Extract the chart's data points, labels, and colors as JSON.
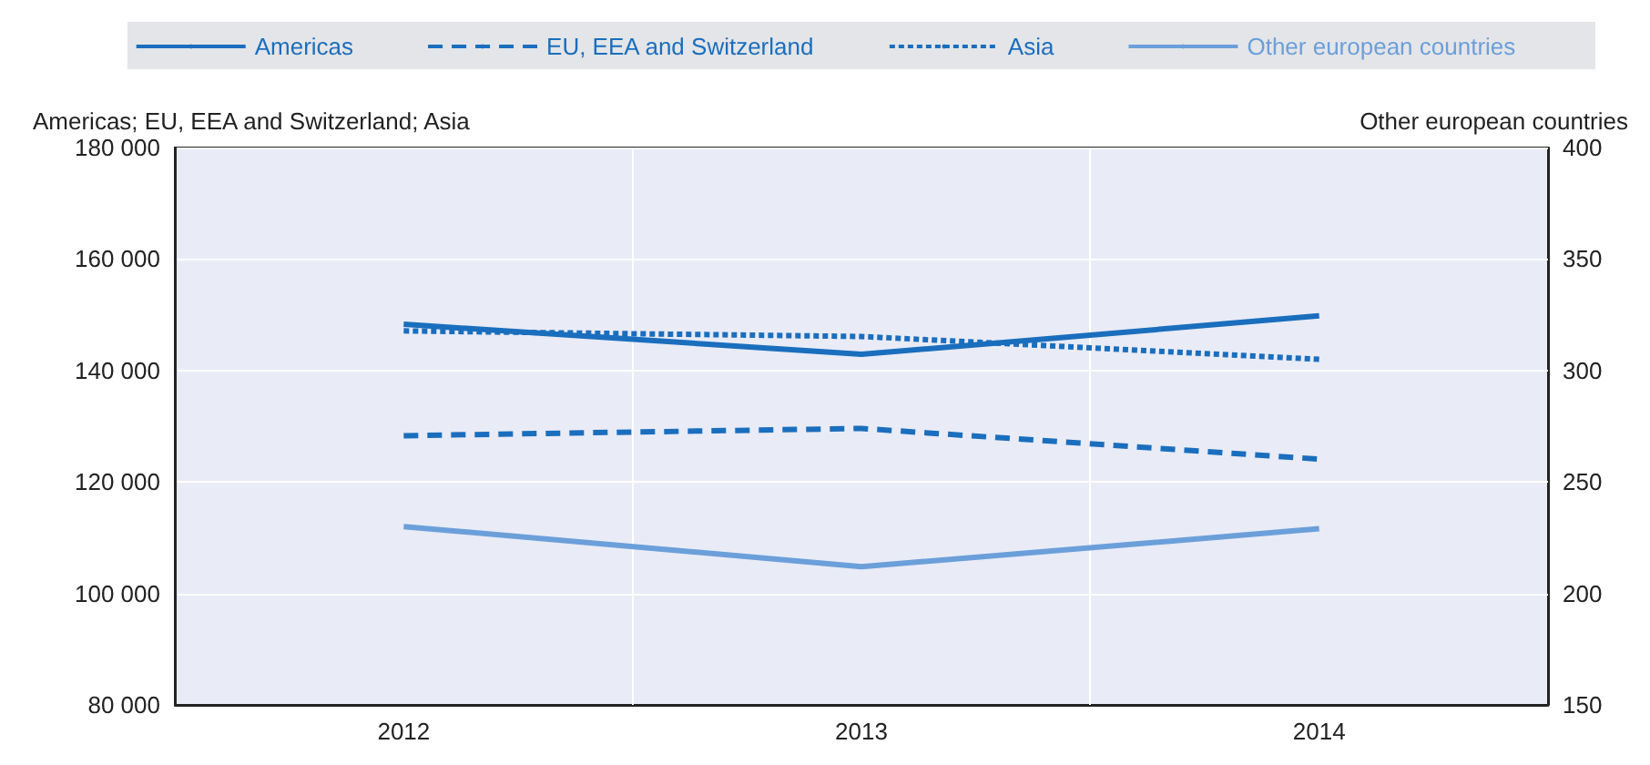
{
  "chart_data": {
    "type": "line",
    "ylabel": "Americas; EU, EEA and Switzerland; Asia",
    "y2label": "Other european countries",
    "categories": [
      "2012",
      "2013",
      "2014"
    ],
    "series": [
      {
        "name": "Americas",
        "color": "#1a6ebd",
        "line_style": "solid",
        "values": [
          148300,
          142900,
          149800
        ]
      },
      {
        "name": "EU, EEA and Switzerland",
        "color": "#1a6ebd",
        "line_style": "dashed",
        "values": [
          128300,
          129600,
          124100
        ]
      },
      {
        "name": "Asia",
        "color": "#1a6ebd",
        "line_style": "dotted",
        "values": [
          147100,
          146100,
          142000
        ]
      },
      {
        "name": "Other european countries",
        "color": "#6b9fda",
        "line_style": "solid",
        "axis": "y2",
        "values": [
          230,
          212,
          229
        ]
      }
    ],
    "ylim": [
      80000,
      180000
    ],
    "yticks": [
      {
        "value": 80000,
        "label": "80 000"
      },
      {
        "value": 100000,
        "label": "100 000"
      },
      {
        "value": 120000,
        "label": "120 000"
      },
      {
        "value": 140000,
        "label": "140 000"
      },
      {
        "value": 160000,
        "label": "160 000"
      },
      {
        "value": 180000,
        "label": "180 000"
      }
    ],
    "y2lim": [
      150,
      400
    ],
    "y2ticks": [
      150,
      200,
      250,
      300,
      350,
      400
    ],
    "grid": true,
    "legend": "top",
    "marker": "none"
  }
}
